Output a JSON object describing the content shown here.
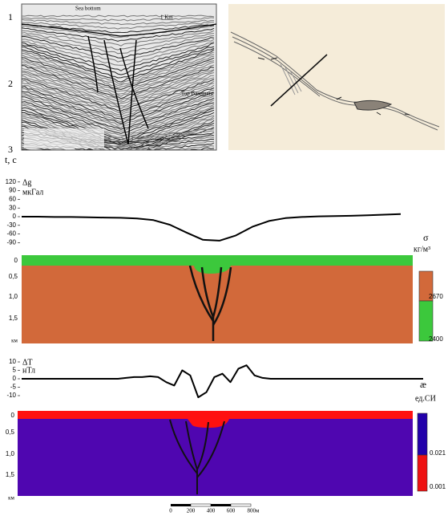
{
  "seismic": {
    "y_labels": [
      "1",
      "2",
      "3"
    ],
    "axis_label": "t, c",
    "sea_bottom": "Sea bottom",
    "scale": "1 Km",
    "top_basement": "Top Basement"
  },
  "chart_data": [
    {
      "type": "line",
      "ylabel": "Δg",
      "yunit": "мкГал",
      "ylim": [
        -100,
        130
      ],
      "yticks": [
        120,
        90,
        60,
        30,
        0,
        -30,
        -60,
        -90
      ],
      "color": "#000000",
      "categories": [
        null,
        null,
        null,
        null,
        null,
        null,
        null,
        null,
        null,
        null,
        null,
        null,
        null,
        null,
        null,
        null,
        null,
        null,
        null,
        null,
        null,
        null,
        null,
        null
      ],
      "values": [
        0,
        0,
        -1,
        -1,
        -2,
        -3,
        -4,
        -6,
        -12,
        -28,
        -55,
        -80,
        -83,
        -65,
        -35,
        -15,
        -5,
        -1,
        1,
        2,
        3,
        5,
        7,
        9
      ]
    },
    {
      "type": "line",
      "ylabel": "ΔT",
      "yunit": "нТл",
      "ylim": [
        -15,
        12
      ],
      "yticks": [
        10,
        5,
        0,
        -5,
        -10
      ],
      "color": "#000000",
      "categories": [
        null,
        null,
        null,
        null,
        null,
        null,
        null,
        null,
        null,
        null,
        null,
        null,
        null,
        null,
        null,
        null,
        null,
        null,
        null,
        null,
        null,
        null,
        null,
        null,
        null,
        null,
        null,
        null,
        null,
        null,
        null,
        null,
        null,
        null,
        null,
        null,
        null,
        null,
        null,
        null,
        null,
        null,
        null,
        null,
        null,
        null,
        null,
        null,
        null,
        null,
        null
      ],
      "values": [
        0,
        0,
        0,
        0,
        0,
        0,
        0,
        0,
        0,
        0,
        0,
        0,
        0,
        0.5,
        1,
        1,
        1.5,
        1,
        -2,
        -4,
        5,
        2,
        -11,
        -8,
        1,
        3,
        -2,
        6,
        8,
        2,
        0.5,
        0,
        0,
        0,
        0,
        0,
        0,
        0,
        0,
        0,
        0,
        0,
        0,
        0,
        0,
        0,
        0,
        0,
        0,
        0,
        0
      ]
    }
  ],
  "density_section": {
    "depth_labels": [
      "0",
      "0,5",
      "1,0",
      "1,5"
    ],
    "depth_unit": "км",
    "legend_symbol": "σ",
    "legend_unit": "кг/м³",
    "legend_labels": [
      "2670",
      "2400"
    ]
  },
  "magnetic_section": {
    "depth_labels": [
      "0",
      "0,5",
      "1,0",
      "1,5"
    ],
    "depth_unit": "км",
    "legend_symbol": "æ",
    "legend_unit": "ед.СИ",
    "legend_labels": [
      "0.021",
      "0.001"
    ]
  },
  "scale_bar": [
    "0",
    "200",
    "400",
    "600",
    "800м"
  ]
}
